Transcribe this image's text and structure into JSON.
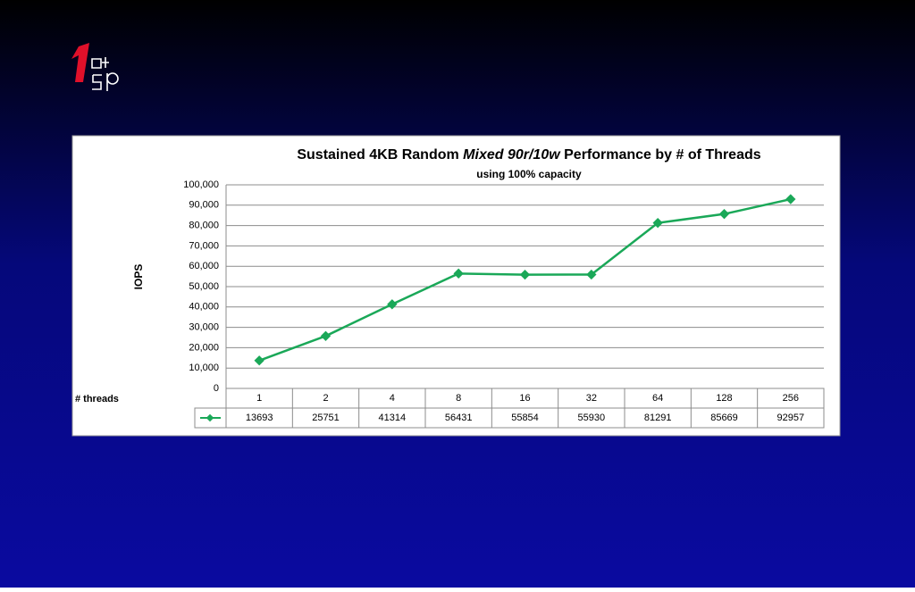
{
  "chart_data": {
    "type": "line",
    "title": {
      "before": "Sustained 4KB Random ",
      "italic": "Mixed 90r/10w",
      "after": " Performance by # of Threads"
    },
    "subtitle": "using 100% capacity",
    "y_label": "IOPS",
    "x_label": "# threads",
    "categories": [
      "1",
      "2",
      "4",
      "8",
      "16",
      "32",
      "64",
      "128",
      "256"
    ],
    "values": [
      13693,
      25751,
      41314,
      56431,
      55854,
      55930,
      81291,
      85669,
      92957
    ],
    "color": "#1aa858",
    "ylim": [
      0,
      100000
    ],
    "yticks": [
      0,
      {
        "value": 10000,
        "label": "10,000"
      },
      {
        "value": 20000,
        "label": "20,000"
      },
      {
        "value": 30000,
        "label": "30,000"
      },
      {
        "value": 40000,
        "label": "40,000"
      },
      {
        "value": 50000,
        "label": "50,000"
      },
      {
        "value": 60000,
        "label": "60,000"
      },
      {
        "value": 70000,
        "label": "70,000"
      },
      {
        "value": 80000,
        "label": "80,000"
      },
      {
        "value": 90000,
        "label": "90,000"
      },
      {
        "value": 100000,
        "label": "100,000"
      }
    ],
    "grid": true
  }
}
